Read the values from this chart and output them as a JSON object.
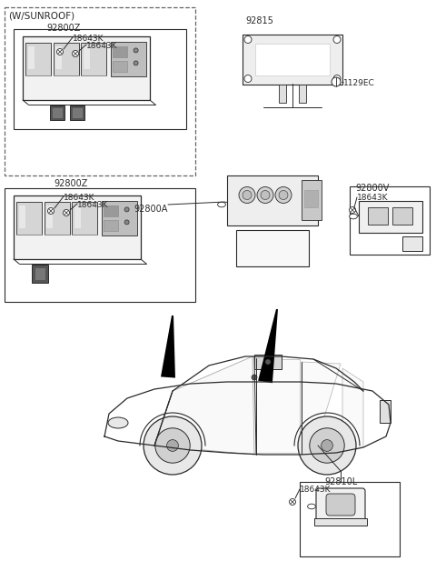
{
  "bg_color": "#ffffff",
  "lc": "#2a2a2a",
  "lc_light": "#555555",
  "figsize": [
    4.8,
    6.17
  ],
  "dpi": 100,
  "labels": {
    "sunroof": "(W/SUNROOF)",
    "z_top": "92800Z",
    "z_bot": "92800Z",
    "a": "92800A",
    "v": "92800V",
    "l": "92810L",
    "s": "92815",
    "bolt": "1129EC",
    "k1": "18643K",
    "k2": "18643K",
    "k3": "18643K",
    "k4": "18643K",
    "k5": "18643K",
    "k6": "18643K",
    "k7": "18643K"
  }
}
